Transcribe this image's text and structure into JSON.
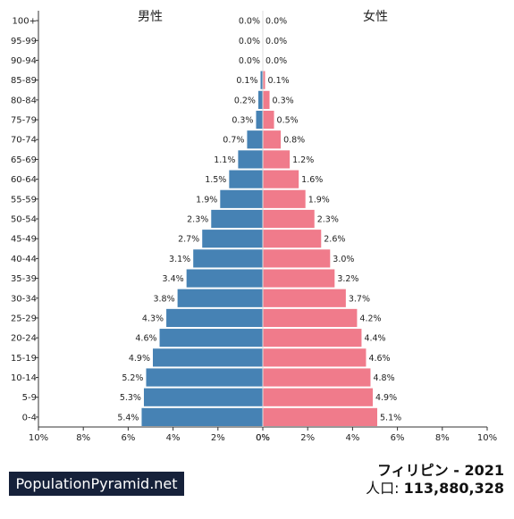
{
  "chart_data": {
    "type": "bar",
    "orientation": "horizontal",
    "layout": "population-pyramid",
    "categories": [
      "0-4",
      "5-9",
      "10-14",
      "15-19",
      "20-24",
      "25-29",
      "30-34",
      "35-39",
      "40-44",
      "45-49",
      "50-54",
      "55-59",
      "60-64",
      "65-69",
      "70-74",
      "75-79",
      "80-84",
      "85-89",
      "90-94",
      "95-99",
      "100+"
    ],
    "series": [
      {
        "name": "男性",
        "color": "#4682b4",
        "values": [
          5.4,
          5.3,
          5.2,
          4.9,
          4.6,
          4.3,
          3.8,
          3.4,
          3.1,
          2.7,
          2.3,
          1.9,
          1.5,
          1.1,
          0.7,
          0.3,
          0.2,
          0.1,
          0.0,
          0.0,
          0.0
        ],
        "labels": [
          "5.4%",
          "5.3%",
          "5.2%",
          "4.9%",
          "4.6%",
          "4.3%",
          "3.8%",
          "3.4%",
          "3.1%",
          "2.7%",
          "2.3%",
          "1.9%",
          "1.5%",
          "1.1%",
          "0.7%",
          "0.3%",
          "0.2%",
          "0.1%",
          "0.0%",
          "0.0%",
          "0.0%"
        ]
      },
      {
        "name": "女性",
        "color": "#f07b8b",
        "values": [
          5.1,
          4.9,
          4.8,
          4.6,
          4.4,
          4.2,
          3.7,
          3.2,
          3.0,
          2.6,
          2.3,
          1.9,
          1.6,
          1.2,
          0.8,
          0.5,
          0.3,
          0.1,
          0.0,
          0.0,
          0.0
        ],
        "labels": [
          "5.1%",
          "4.9%",
          "4.8%",
          "4.6%",
          "4.4%",
          "4.2%",
          "3.7%",
          "3.2%",
          "3.0%",
          "2.6%",
          "2.3%",
          "1.9%",
          "1.6%",
          "1.2%",
          "0.8%",
          "0.5%",
          "0.3%",
          "0.1%",
          "0.0%",
          "0.0%",
          "0.0%"
        ]
      }
    ],
    "xlim": [
      0,
      10
    ],
    "x_ticks_left": [
      "10%",
      "8%",
      "6%",
      "4%",
      "2%",
      "0%"
    ],
    "x_ticks_right": [
      "0%",
      "2%",
      "4%",
      "6%",
      "8%",
      "10%"
    ],
    "grid": false
  },
  "brand": "PopulationPyramid.net",
  "country_title": "フィリピン - 2021",
  "population_label": "人口: ",
  "population_value": "113,880,328"
}
